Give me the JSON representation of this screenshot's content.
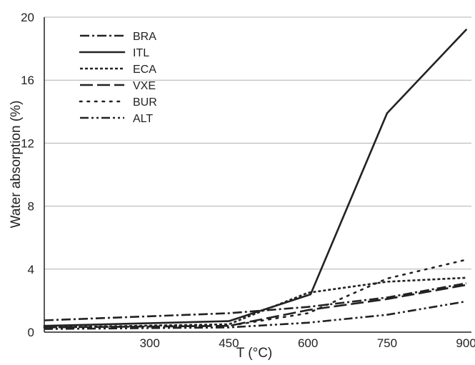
{
  "chart_data": {
    "type": "line",
    "xlabel": "T (°C)",
    "ylabel": "Water absorption (%)",
    "xlim": [
      100,
      910
    ],
    "ylim": [
      0,
      20
    ],
    "x_ticks": [
      300,
      450,
      600,
      750,
      900
    ],
    "y_ticks": [
      0,
      4,
      8,
      12,
      16,
      20
    ],
    "x_tick_labels": [
      "300",
      "450",
      "600",
      "750",
      "900"
    ],
    "y_tick_labels": [
      "0",
      "4",
      "8",
      "12",
      "16",
      "20"
    ],
    "y_gridlines": true,
    "legend_position": "top-left",
    "line_color": "#222222",
    "grid_color": "#b0b0b0",
    "series": [
      {
        "name": "BRA",
        "style": "dash-dot",
        "x": [
          100,
          450,
          600,
          750,
          900
        ],
        "y": [
          0.75,
          1.2,
          1.6,
          2.2,
          3.1
        ]
      },
      {
        "name": "ITL",
        "style": "solid",
        "x": [
          100,
          450,
          605,
          750,
          900
        ],
        "y": [
          0.4,
          0.7,
          2.4,
          13.9,
          19.2
        ]
      },
      {
        "name": "ECA",
        "style": "dotted-dense",
        "x": [
          100,
          450,
          600,
          750,
          900
        ],
        "y": [
          0.3,
          0.5,
          2.5,
          3.2,
          3.45
        ]
      },
      {
        "name": "VXE",
        "style": "long-dash",
        "x": [
          100,
          450,
          600,
          750,
          900
        ],
        "y": [
          0.3,
          0.4,
          1.4,
          2.1,
          3.0
        ]
      },
      {
        "name": "BUR",
        "style": "dotted-sparse",
        "x": [
          100,
          450,
          600,
          750,
          900
        ],
        "y": [
          0.3,
          0.4,
          1.2,
          3.4,
          4.6
        ]
      },
      {
        "name": "ALT",
        "style": "dash-dot-dot",
        "x": [
          100,
          450,
          600,
          750,
          900
        ],
        "y": [
          0.2,
          0.3,
          0.6,
          1.1,
          1.95
        ]
      }
    ]
  }
}
